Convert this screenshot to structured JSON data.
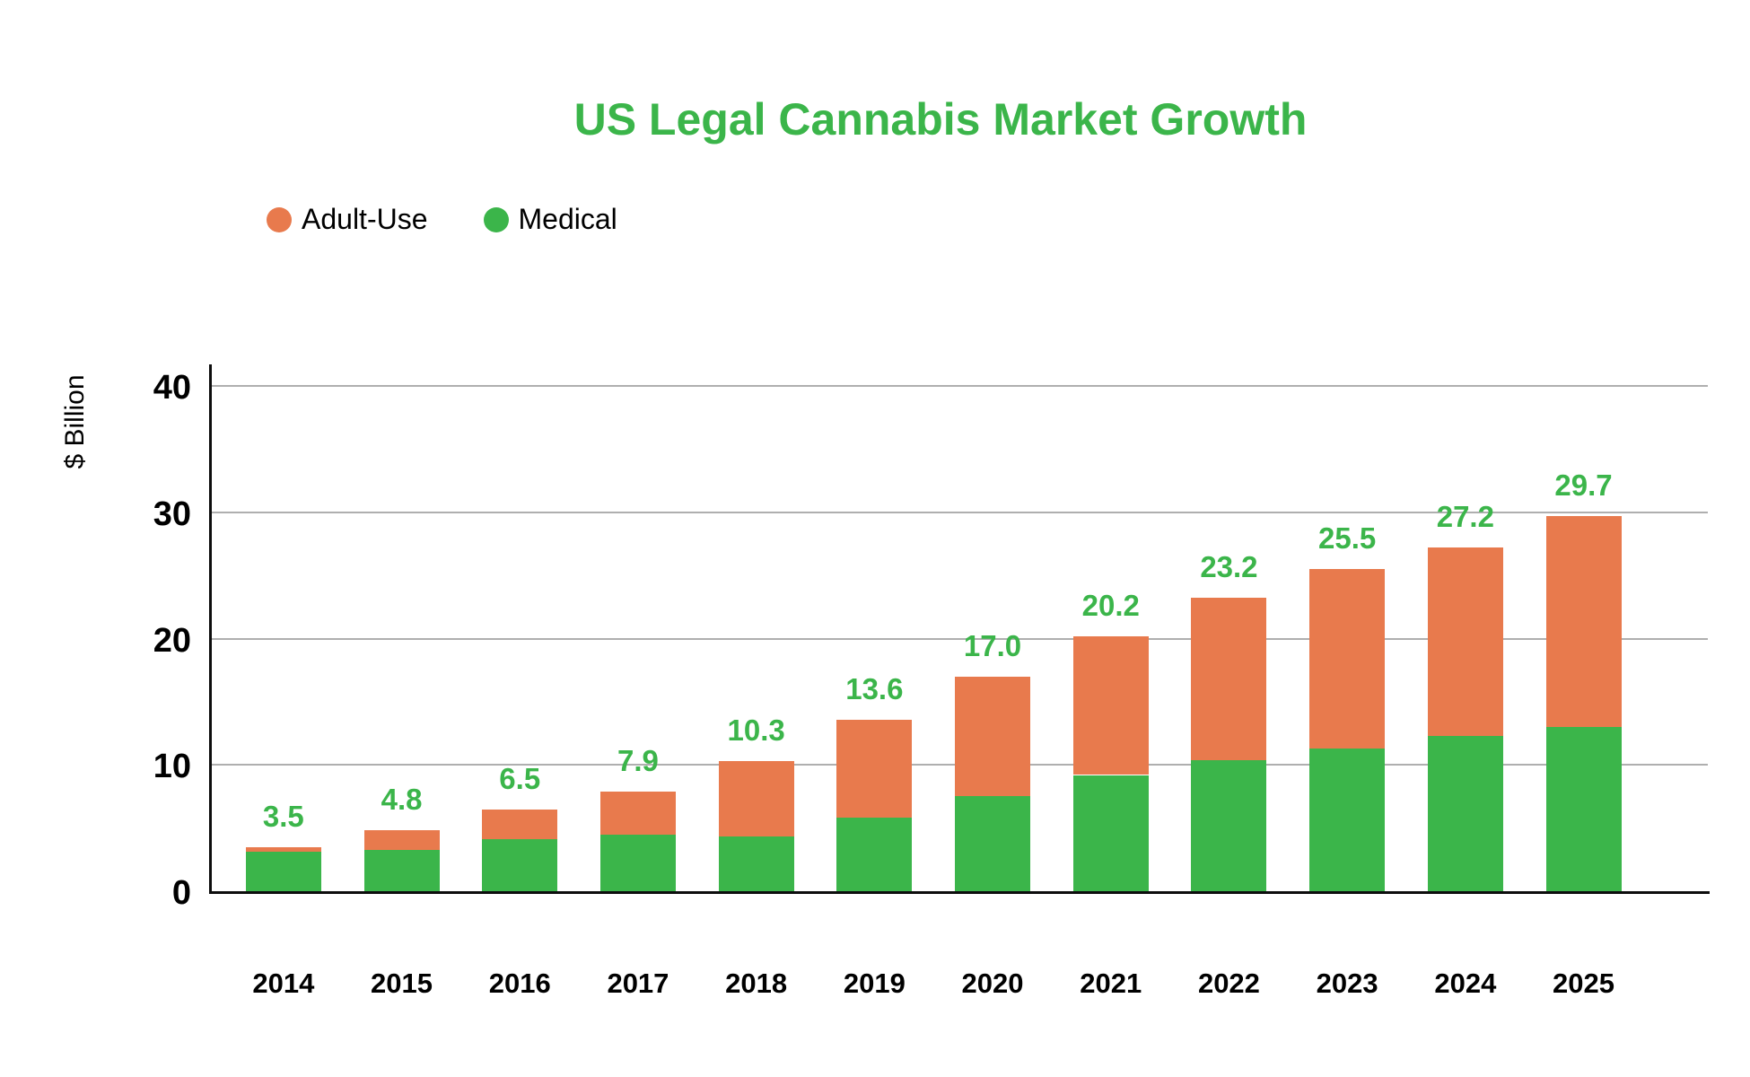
{
  "title": "US Legal Cannabis Market Growth",
  "legend": [
    {
      "label": "Adult-Use",
      "color": "#E87A4D"
    },
    {
      "label": "Medical",
      "color": "#3BB54A"
    }
  ],
  "y_axis": {
    "label": "$ Billion",
    "ticks": [
      "0",
      "10",
      "20",
      "30",
      "40"
    ],
    "tick_values": [
      0,
      10,
      20,
      30,
      40
    ]
  },
  "colors": {
    "adult_use": "#E87A4D",
    "medical": "#3BB54A",
    "title_text": "#3BB54A",
    "value_label_text": "#3BB54A",
    "axis": "#0d0d0d",
    "gridline": "#AFAFAF",
    "text": "#000000",
    "background": "#ffffff"
  },
  "chart_data": {
    "type": "bar",
    "stacked": true,
    "title": "US Legal Cannabis Market Growth",
    "xlabel": "",
    "ylabel": "$ Billion",
    "ylim": [
      0,
      40
    ],
    "grid": true,
    "legend_position": "top-left",
    "categories": [
      "2014",
      "2015",
      "2016",
      "2017",
      "2018",
      "2019",
      "2020",
      "2021",
      "2022",
      "2023",
      "2024",
      "2025"
    ],
    "series": [
      {
        "name": "Medical",
        "color": "#3BB54A",
        "stack_position": "bottom",
        "values": [
          3.1,
          3.3,
          4.1,
          4.5,
          4.3,
          5.8,
          7.5,
          9.2,
          10.4,
          11.3,
          12.3,
          13.0
        ]
      },
      {
        "name": "Adult-Use",
        "color": "#E87A4D",
        "stack_position": "top",
        "values": [
          0.4,
          1.5,
          2.4,
          3.4,
          6.0,
          7.8,
          9.5,
          11.0,
          12.8,
          14.2,
          14.9,
          16.7
        ]
      }
    ],
    "totals": [
      3.5,
      4.8,
      6.5,
      7.9,
      10.3,
      13.6,
      17.0,
      20.2,
      23.2,
      25.5,
      27.2,
      29.7
    ],
    "totals_display": [
      "3.5",
      "4.8",
      "6.5",
      "7.9",
      "10.3",
      "13.6",
      "17.0",
      "20.2",
      "23.2",
      "25.5",
      "27.2",
      "29.7"
    ]
  }
}
